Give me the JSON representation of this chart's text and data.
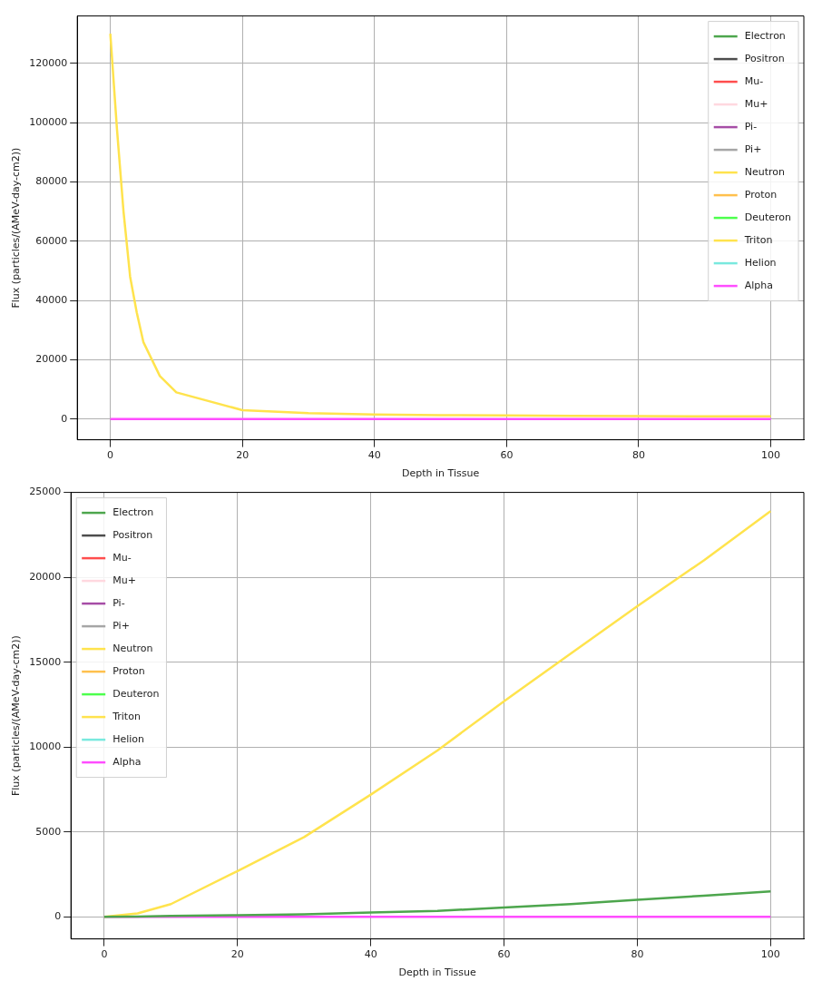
{
  "chart_data": [
    {
      "type": "line",
      "xlabel": "Depth in Tissue",
      "ylabel": "Flux (particles/(AMeV-day-cm2))",
      "x": [
        0,
        1,
        2,
        3,
        4,
        5,
        7.5,
        10,
        20,
        30,
        40,
        50,
        60,
        70,
        80,
        90,
        100
      ],
      "xlim": [
        -5,
        105
      ],
      "xticks": [
        0,
        20,
        40,
        60,
        80,
        100
      ],
      "ylim": [
        -7000,
        136000
      ],
      "yticks": [
        0,
        20000,
        40000,
        60000,
        80000,
        100000,
        120000
      ],
      "grid": true,
      "legend": "top right",
      "series": [
        {
          "name": "Electron",
          "color": "#4da64d",
          "values": [
            null,
            null,
            null,
            null,
            null,
            null,
            null,
            null,
            null,
            null,
            null,
            null,
            null,
            null,
            null,
            null,
            null
          ]
        },
        {
          "name": "Positron",
          "color": "#4d4d4d",
          "values": [
            null,
            null,
            null,
            null,
            null,
            null,
            null,
            null,
            null,
            null,
            null,
            null,
            null,
            null,
            null,
            null,
            null
          ]
        },
        {
          "name": "Mu-",
          "color": "#ff4d4d",
          "values": [
            null,
            null,
            null,
            null,
            null,
            null,
            null,
            null,
            null,
            null,
            null,
            null,
            null,
            null,
            null,
            null,
            null
          ]
        },
        {
          "name": "Mu+",
          "color": "#ffd8df",
          "values": [
            null,
            null,
            null,
            null,
            null,
            null,
            null,
            null,
            null,
            null,
            null,
            null,
            null,
            null,
            null,
            null,
            null
          ]
        },
        {
          "name": "Pi-",
          "color": "#a64da6",
          "values": [
            null,
            null,
            null,
            null,
            null,
            null,
            null,
            null,
            null,
            null,
            null,
            null,
            null,
            null,
            null,
            null,
            null
          ]
        },
        {
          "name": "Pi+",
          "color": "#a6a6a6",
          "values": [
            null,
            null,
            null,
            null,
            null,
            null,
            null,
            null,
            null,
            null,
            null,
            null,
            null,
            null,
            null,
            null,
            null
          ]
        },
        {
          "name": "Neutron",
          "color": "#ffe34d",
          "values": [
            130000,
            98000,
            70000,
            48000,
            36000,
            26000,
            14500,
            9000,
            3000,
            2000,
            1500,
            1300,
            1200,
            1100,
            1000,
            900,
            900
          ]
        },
        {
          "name": "Proton",
          "color": "#ffc04d",
          "values": [
            null,
            null,
            null,
            null,
            null,
            null,
            null,
            null,
            null,
            null,
            null,
            null,
            null,
            null,
            null,
            null,
            null
          ]
        },
        {
          "name": "Deuteron",
          "color": "#4dff4d",
          "values": [
            null,
            null,
            null,
            null,
            null,
            null,
            null,
            null,
            null,
            null,
            null,
            null,
            null,
            null,
            null,
            null,
            null
          ]
        },
        {
          "name": "Triton",
          "color": "#ffe34d",
          "values": [
            null,
            null,
            null,
            null,
            null,
            null,
            null,
            null,
            null,
            null,
            null,
            null,
            null,
            null,
            null,
            null,
            null
          ]
        },
        {
          "name": "Helion",
          "color": "#79e9de",
          "values": [
            null,
            null,
            null,
            null,
            null,
            null,
            null,
            null,
            null,
            null,
            null,
            null,
            null,
            null,
            null,
            null,
            null
          ]
        },
        {
          "name": "Alpha",
          "color": "#ff4dff",
          "values": [
            0,
            0,
            0,
            0,
            0,
            0,
            0,
            0,
            0,
            0,
            0,
            0,
            0,
            0,
            0,
            0,
            0
          ]
        }
      ]
    },
    {
      "type": "line",
      "xlabel": "Depth in Tissue",
      "ylabel": "Flux (particles/(AMeV-day-cm2))",
      "x": [
        0,
        5,
        10,
        20,
        30,
        40,
        50,
        60,
        70,
        80,
        90,
        100
      ],
      "xlim": [
        -5,
        105
      ],
      "xticks": [
        0,
        20,
        40,
        60,
        80,
        100
      ],
      "ylim": [
        -1300,
        25000
      ],
      "yticks": [
        0,
        5000,
        10000,
        15000,
        20000,
        25000
      ],
      "grid": true,
      "legend": "top left",
      "series": [
        {
          "name": "Electron",
          "color": "#4da64d",
          "values": [
            0,
            20,
            50,
            100,
            150,
            250,
            350,
            550,
            750,
            1000,
            1250,
            1500
          ]
        },
        {
          "name": "Positron",
          "color": "#4d4d4d",
          "values": [
            null,
            null,
            null,
            null,
            null,
            null,
            null,
            null,
            null,
            null,
            null,
            null
          ]
        },
        {
          "name": "Mu-",
          "color": "#ff4d4d",
          "values": [
            null,
            null,
            null,
            null,
            null,
            null,
            null,
            null,
            null,
            null,
            null,
            null
          ]
        },
        {
          "name": "Mu+",
          "color": "#ffd8df",
          "values": [
            null,
            null,
            null,
            null,
            null,
            null,
            null,
            null,
            null,
            null,
            null,
            null
          ]
        },
        {
          "name": "Pi-",
          "color": "#a64da6",
          "values": [
            null,
            null,
            null,
            null,
            null,
            null,
            null,
            null,
            null,
            null,
            null,
            null
          ]
        },
        {
          "name": "Pi+",
          "color": "#a6a6a6",
          "values": [
            null,
            null,
            null,
            null,
            null,
            null,
            null,
            null,
            null,
            null,
            null,
            null
          ]
        },
        {
          "name": "Neutron",
          "color": "#ffe34d",
          "values": [
            0,
            200,
            750,
            2700,
            4700,
            7200,
            9800,
            12700,
            15500,
            18300,
            21000,
            23900
          ]
        },
        {
          "name": "Proton",
          "color": "#ffc04d",
          "values": [
            null,
            null,
            null,
            null,
            null,
            null,
            null,
            null,
            null,
            null,
            null,
            null
          ]
        },
        {
          "name": "Deuteron",
          "color": "#4dff4d",
          "values": [
            null,
            null,
            null,
            null,
            null,
            null,
            null,
            null,
            null,
            null,
            null,
            null
          ]
        },
        {
          "name": "Triton",
          "color": "#ffe34d",
          "values": [
            null,
            null,
            null,
            null,
            null,
            null,
            null,
            null,
            null,
            null,
            null,
            null
          ]
        },
        {
          "name": "Helion",
          "color": "#79e9de",
          "values": [
            null,
            null,
            null,
            null,
            null,
            null,
            null,
            null,
            null,
            null,
            null,
            null
          ]
        },
        {
          "name": "Alpha",
          "color": "#ff4dff",
          "values": [
            0,
            0,
            0,
            0,
            0,
            0,
            0,
            0,
            0,
            0,
            0,
            0
          ]
        }
      ]
    }
  ]
}
